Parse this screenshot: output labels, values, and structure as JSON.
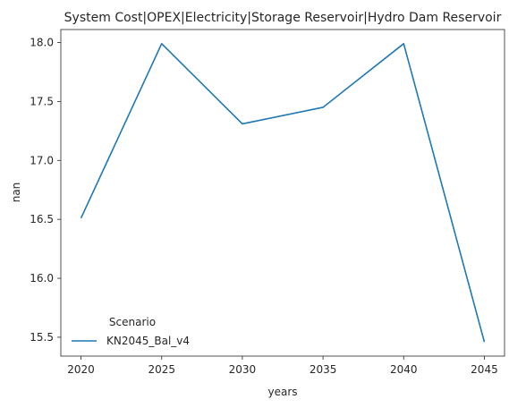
{
  "chart_data": {
    "type": "line",
    "title": "System Cost|OPEX|Electricity|Storage Reservoir|Hydro Dam Reservoir",
    "xlabel": "years",
    "ylabel": "nan",
    "x": [
      2020,
      2025,
      2030,
      2035,
      2040,
      2045
    ],
    "series": [
      {
        "name": "KN2045_Bal_v4",
        "values": [
          16.51,
          17.99,
          17.31,
          17.45,
          17.99,
          15.46
        ]
      }
    ],
    "xticks": [
      "2020",
      "2025",
      "2030",
      "2035",
      "2040",
      "2045"
    ],
    "yticks": [
      "15.5",
      "16.0",
      "16.5",
      "17.0",
      "17.5",
      "18.0"
    ],
    "xlim": [
      2018.75,
      2046.25
    ],
    "ylim": [
      15.34,
      18.11
    ],
    "grid": false,
    "legend": {
      "title": "Scenario",
      "placement": "lower-left"
    },
    "colors": {
      "series": "#1f77b4",
      "axis": "#262626"
    }
  }
}
